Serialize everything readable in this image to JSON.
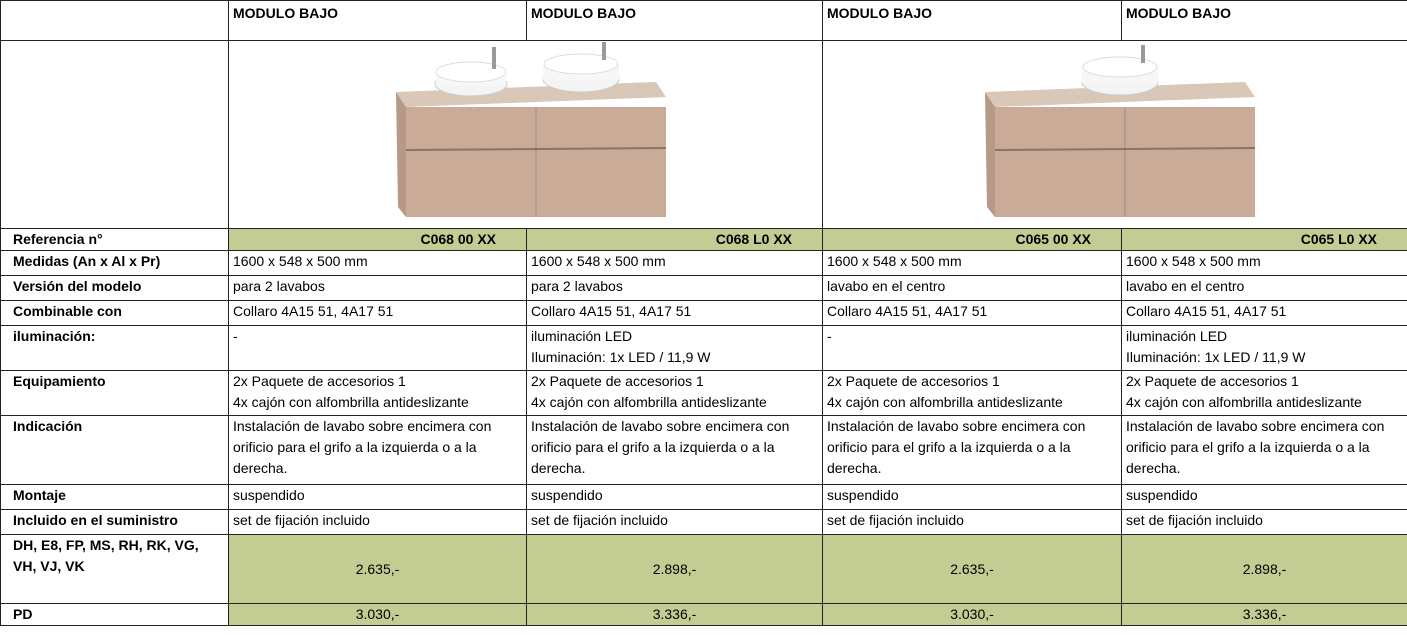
{
  "header": {
    "columns": [
      "MODULO BAJO",
      "MODULO BAJO",
      "MODULO BAJO",
      "MODULO BAJO"
    ]
  },
  "table": {
    "rows": [
      {
        "label": "Referencia n°",
        "cells": [
          "C068 00 XX",
          "C068 L0 XX",
          "C065 00 XX",
          "C065 L0 XX"
        ]
      },
      {
        "label": "Medidas (An x Al x Pr)",
        "cells": [
          "1600 x 548 x 500 mm",
          "1600 x 548 x 500 mm",
          "1600 x 548 x 500 mm",
          "1600 x 548 x 500 mm"
        ]
      },
      {
        "label": "Versión del modelo",
        "cells": [
          "para 2 lavabos",
          "para 2 lavabos",
          "lavabo en el centro",
          "lavabo en el centro"
        ]
      },
      {
        "label": "Combinable con",
        "cells": [
          "Collaro 4A15 51, 4A17 51",
          "Collaro 4A15 51, 4A17 51",
          "Collaro 4A15 51, 4A17 51",
          "Collaro 4A15 51, 4A17 51"
        ]
      },
      {
        "label": "iluminación:",
        "cells": [
          [
            "-"
          ],
          [
            "iluminación LED",
            "Iluminación: 1x LED / 11,9 W"
          ],
          [
            "-"
          ],
          [
            "iluminación LED",
            "Iluminación: 1x LED / 11,9 W"
          ]
        ]
      },
      {
        "label": "Equipamiento",
        "cells": [
          [
            "2x Paquete de accesorios 1",
            "4x cajón con alfombrilla antideslizante"
          ],
          [
            "2x Paquete de accesorios 1",
            "4x cajón con alfombrilla antideslizante"
          ],
          [
            "2x Paquete de accesorios 1",
            "4x cajón con alfombrilla antideslizante"
          ],
          [
            "2x Paquete de accesorios 1",
            "4x cajón con alfombrilla antideslizante"
          ]
        ]
      },
      {
        "label": "Indicación",
        "cells": [
          "Instalación de lavabo sobre encimera con orificio para el grifo a la izquierda o a la derecha.",
          "Instalación de lavabo sobre encimera con orificio para el grifo a la izquierda o a la derecha.",
          "Instalación de lavabo sobre encimera con orificio para el grifo a la izquierda o a la derecha.",
          "Instalación de lavabo sobre encimera con orificio para el grifo a la izquierda o a la derecha."
        ]
      },
      {
        "label": "Montaje",
        "cells": [
          "suspendido",
          "suspendido",
          "suspendido",
          "suspendido"
        ]
      },
      {
        "label": "Incluido en el suministro",
        "cells": [
          "set de fijación incluido",
          "set de fijación incluido",
          "set de fijación incluido",
          "set de fijación incluido"
        ]
      },
      {
        "label": "DH, E8, FP, MS, RH, RK, VG, VH, VJ, VK",
        "cells": [
          "2.635,-",
          "2.898,-",
          "2.635,-",
          "2.898,-"
        ]
      },
      {
        "label": "PD",
        "cells": [
          "3.030,-",
          "3.336,-",
          "3.030,-",
          "3.336,-"
        ]
      }
    ]
  }
}
